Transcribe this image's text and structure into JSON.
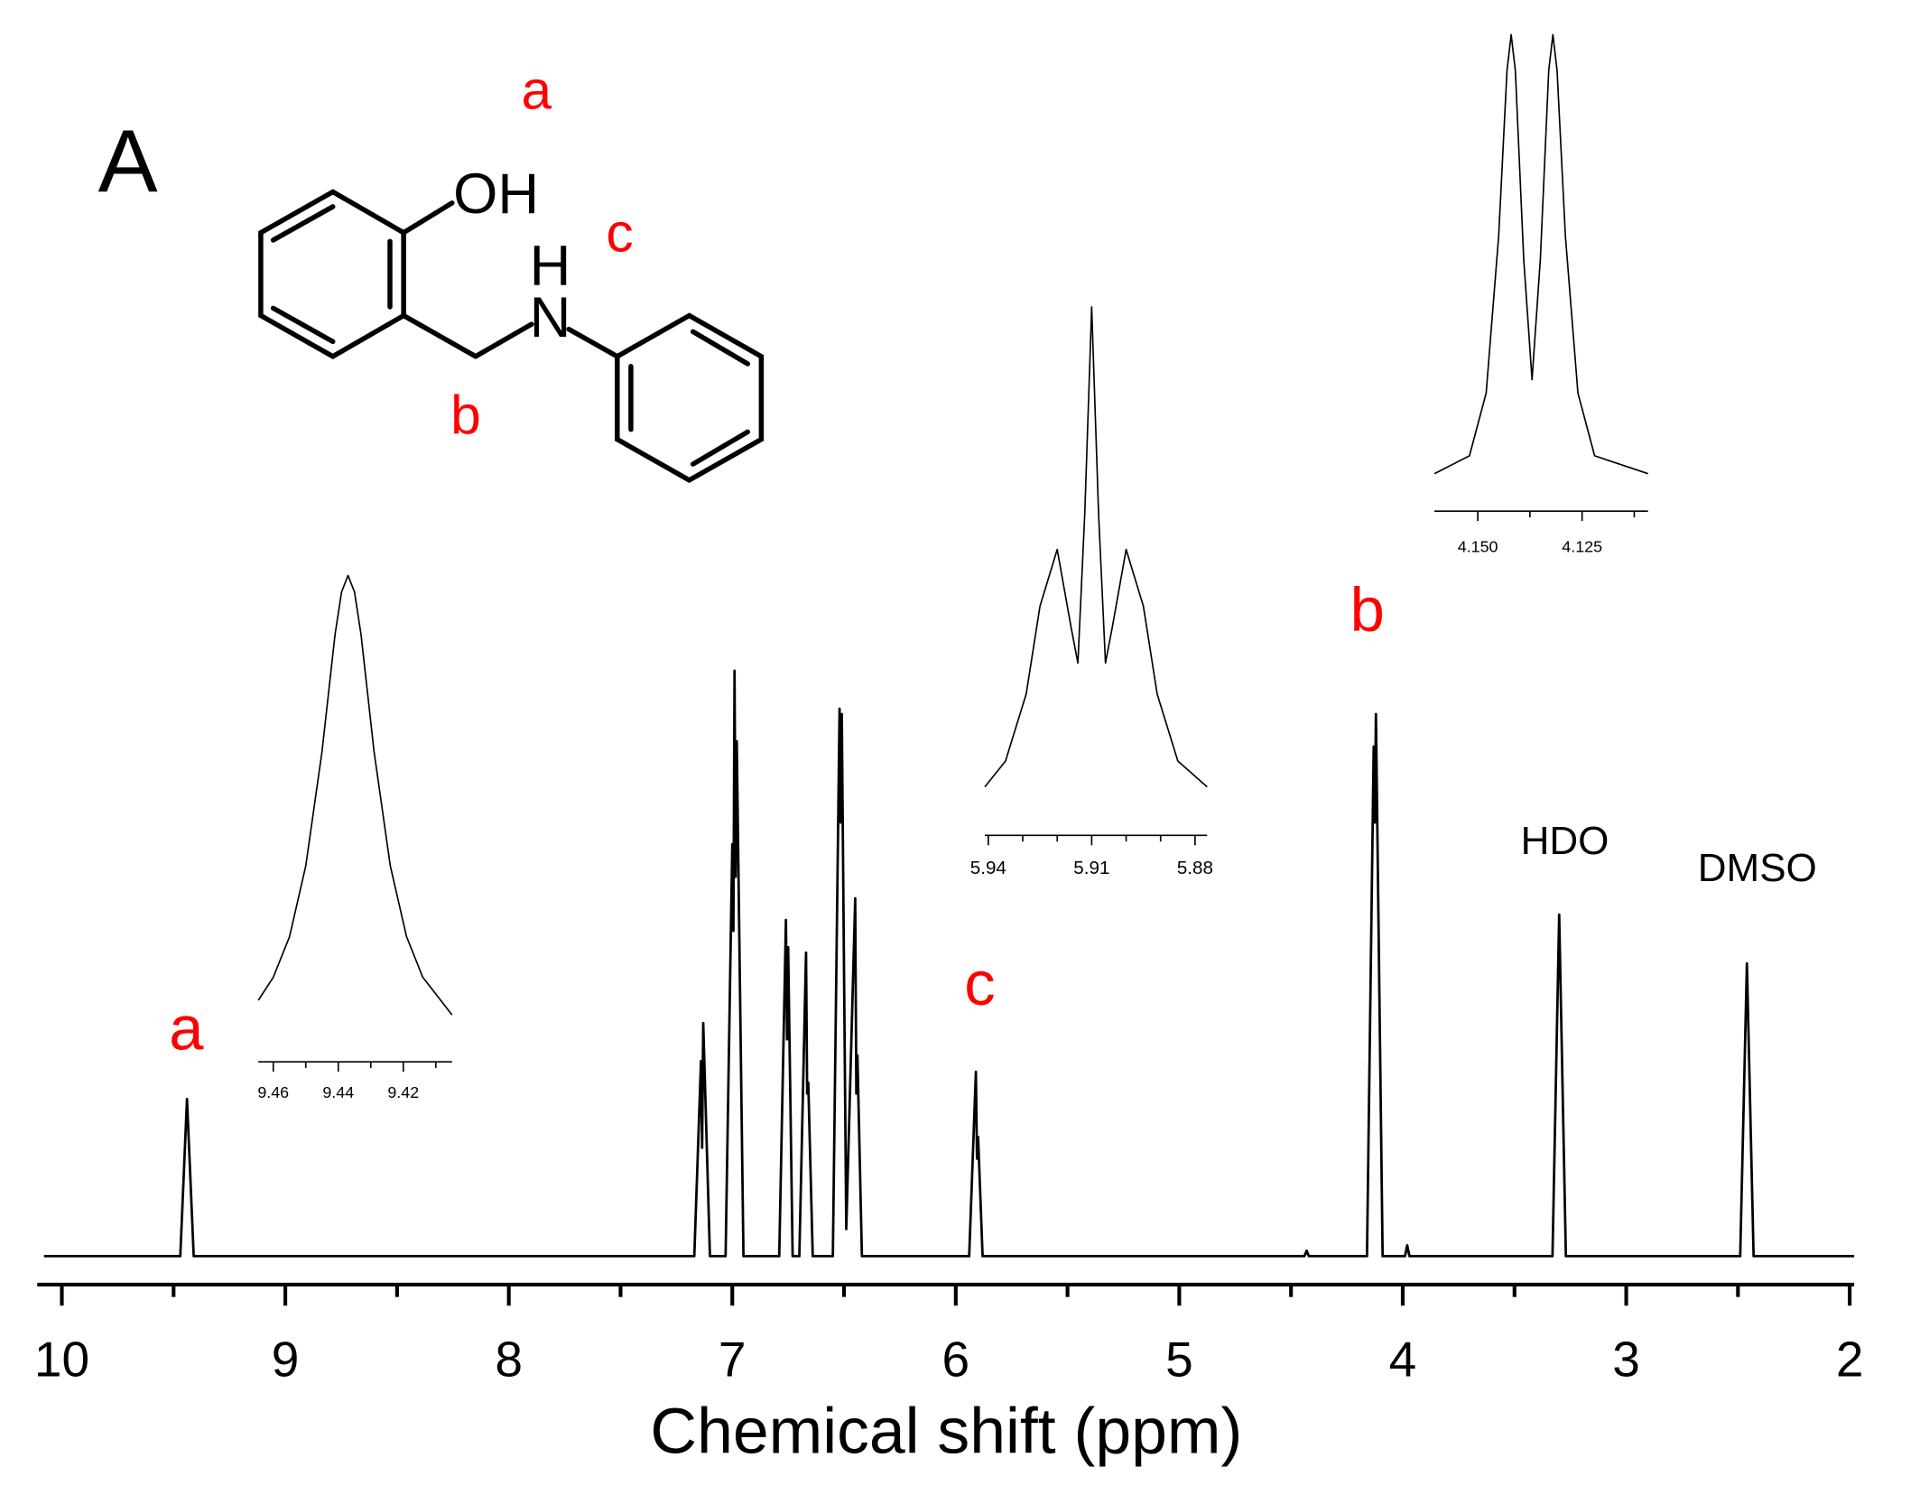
{
  "chart_data": [
    {
      "type": "line",
      "panel_label": "A",
      "xlabel": "Chemical shift (ppm)",
      "xlim": [
        10.11,
        1.98
      ],
      "xticks": [
        10,
        9,
        8,
        7,
        6,
        5,
        4,
        3,
        2
      ],
      "xticks_minor": [
        9.5,
        8.5,
        7.5,
        6.5,
        5.5,
        4.5,
        3.5,
        2.5
      ],
      "color": "#000000",
      "x": [
        10.08,
        9.47,
        9.44,
        9.41,
        7.17,
        7.14,
        7.135,
        7.13,
        7.1,
        7.03,
        7.0,
        6.995,
        6.99,
        6.985,
        6.98,
        6.95,
        6.79,
        6.76,
        6.755,
        6.75,
        6.73,
        6.7,
        6.67,
        6.665,
        6.66,
        6.64,
        6.55,
        6.52,
        6.515,
        6.51,
        6.49,
        6.45,
        6.445,
        6.44,
        6.42,
        5.94,
        5.91,
        5.905,
        5.9,
        5.88,
        4.44,
        4.43,
        4.42,
        4.16,
        4.13,
        4.125,
        4.12,
        4.09,
        3.99,
        3.98,
        3.97,
        3.33,
        3.3,
        3.27,
        2.49,
        2.46,
        2.43,
        1.98
      ],
      "values": [
        0,
        0,
        29,
        0,
        0,
        36,
        20,
        43,
        0,
        0,
        76,
        60,
        108,
        70,
        95,
        0,
        0,
        62,
        40,
        57,
        0,
        0,
        56,
        30,
        32,
        0,
        0,
        101,
        80,
        100,
        5,
        66,
        30,
        37,
        0,
        0,
        34,
        18,
        22,
        0,
        0,
        1,
        0,
        0,
        94,
        80,
        100,
        0,
        0,
        2,
        0,
        0,
        63,
        0,
        0,
        54,
        0,
        0
      ],
      "annotations": [
        {
          "text": "a",
          "color": "#ff0000"
        },
        {
          "text": "c",
          "color": "#ff0000"
        },
        {
          "text": "b",
          "color": "#ff0000"
        },
        {
          "text": "HDO",
          "color": "#000000"
        },
        {
          "text": "DMSO",
          "color": "#000000"
        },
        {
          "text": "a",
          "color": "#ff0000"
        },
        {
          "text": "c",
          "color": "#ff0000"
        },
        {
          "text": "b",
          "color": "#ff0000"
        },
        {
          "text": "OH",
          "color": "#000000"
        },
        {
          "text": "H",
          "color": "#000000"
        },
        {
          "text": "N",
          "color": "#000000"
        }
      ]
    },
    {
      "type": "line",
      "xlim": [
        9.4646,
        9.405
      ],
      "xticks": [
        9.46,
        9.44,
        9.42
      ],
      "xticks_minor": [
        9.45,
        9.43,
        9.41
      ],
      "color": "#000000",
      "x": [
        9.4646,
        9.46,
        9.455,
        9.45,
        9.445,
        9.441,
        9.439,
        9.437,
        9.435,
        9.433,
        9.429,
        9.424,
        9.419,
        9.414,
        9.405
      ],
      "values": [
        13.1,
        17.8,
        26.1,
        40.6,
        64.0,
        87.9,
        96.6,
        100,
        96.6,
        87.9,
        64.0,
        40.6,
        26.1,
        17.8,
        10.1
      ]
    },
    {
      "type": "line",
      "xlim": [
        5.941,
        5.8765
      ],
      "xticks": [
        5.94,
        5.91,
        5.88
      ],
      "xticks_minor": [
        5.93,
        5.92,
        5.9,
        5.89
      ],
      "color": "#000000",
      "x": [
        5.941,
        5.935,
        5.929,
        5.925,
        5.92,
        5.916,
        5.914,
        5.912,
        5.91,
        5.908,
        5.906,
        5.904,
        5.9,
        5.895,
        5.891,
        5.885,
        5.8765
      ],
      "values": [
        7,
        12,
        25,
        42,
        53,
        38,
        31,
        60,
        100,
        60,
        31,
        38,
        53,
        42,
        25,
        12,
        7
      ]
    },
    {
      "type": "line",
      "xlim": [
        4.1604,
        4.1092
      ],
      "xticks": [
        {
          "value": 4.15,
          "label": "4.150"
        },
        {
          "value": 4.125,
          "label": "4.125"
        }
      ],
      "xticks_minor": [
        4.1375,
        4.1125
      ],
      "color": "#000000",
      "x": [
        4.1604,
        4.152,
        4.148,
        4.145,
        4.143,
        4.142,
        4.141,
        4.139,
        4.137,
        4.135,
        4.133,
        4.132,
        4.131,
        4.129,
        4.126,
        4.122,
        4.1092
      ],
      "values": [
        2,
        6,
        20,
        55,
        92,
        100,
        92,
        50,
        23,
        50,
        92,
        100,
        92,
        55,
        20,
        6,
        2
      ]
    }
  ]
}
